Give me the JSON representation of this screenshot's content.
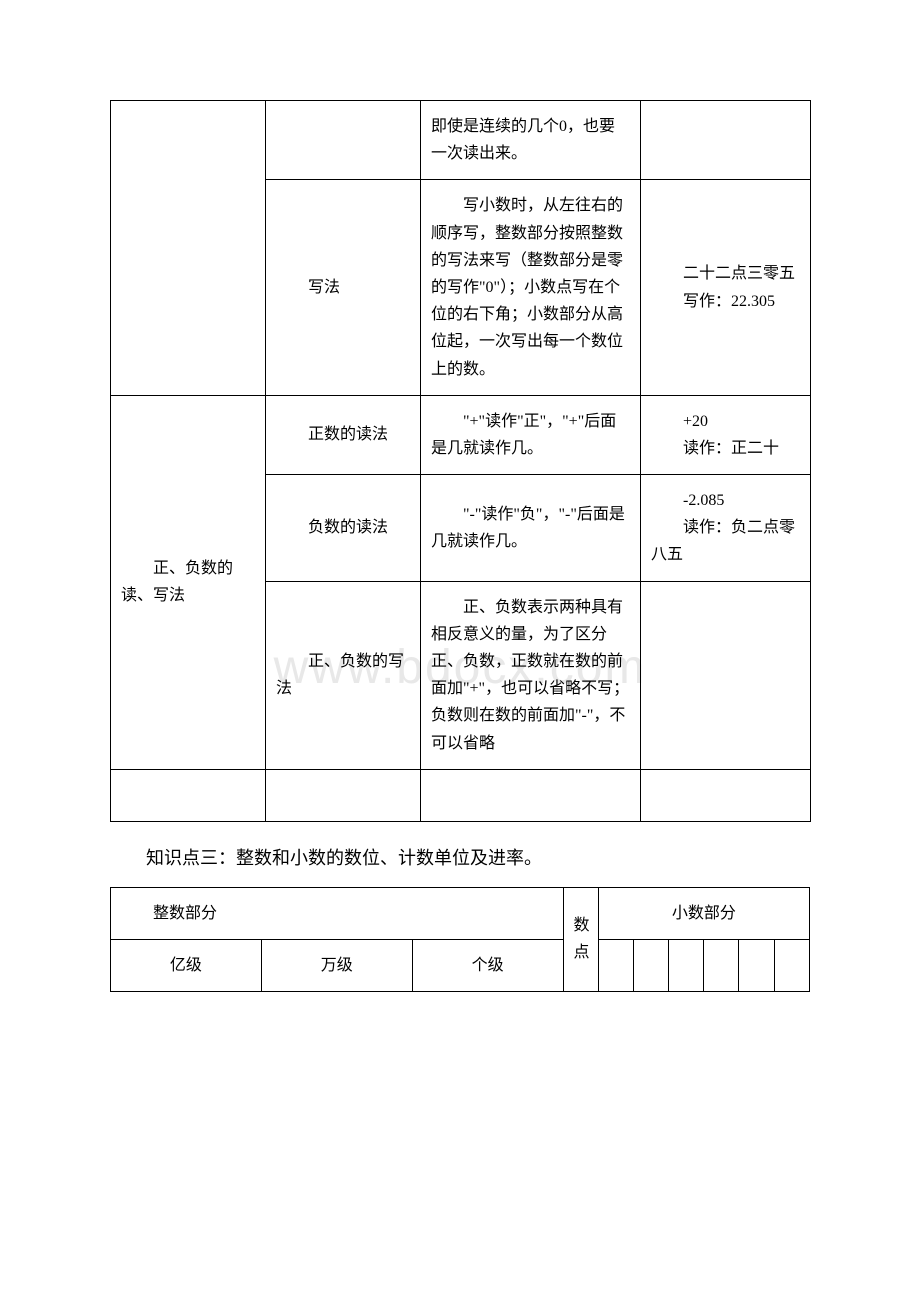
{
  "watermark": "www.bdocx.com",
  "table1": {
    "row1_col3": "即使是连续的几个0，也要一次读出来。",
    "row2_col2": "写法",
    "row2_col3": "写小数时，从左往右的顺序写，整数部分按照整数的写法来写（整数部分是零的写作\"0\"）；小数点写在个位的右下角；小数部分从高位起，一次写出每一个数位上的数。",
    "row2_col4_a": "二十二点三零五",
    "row2_col4_b": "写作：22.305",
    "row3_col1": "正、负数的读、写法",
    "row3a_col2": "正数的读法",
    "row3a_col3": "\"+\"读作\"正\"，\"+\"后面是几就读作几。",
    "row3a_col4_a": "+20",
    "row3a_col4_b": "读作：正二十",
    "row3b_col2": "负数的读法",
    "row3b_col3": "\"-\"读作\"负\"，\"-\"后面是几就读作几。",
    "row3b_col4_a": "-2.085",
    "row3b_col4_b": "读作：负二点零八五",
    "row3c_col2": "正、负数的写法",
    "row3c_col3": "正、负数表示两种具有相反意义的量，为了区分正、负数，正数就在数的前面加\"+\"，也可以省略不写；负数则在数的前面加\"-\"，不可以省略",
    "row4_empty": ""
  },
  "section_title": "知识点三：整数和小数的数位、计数单位及进率。",
  "table2": {
    "h_int": "整数部分",
    "h_point": "数点",
    "h_dec": "小数部分",
    "yi": "亿级",
    "wan": "万级",
    "ge": "个级"
  },
  "colors": {
    "text": "#000000",
    "border": "#000000",
    "background": "#ffffff",
    "watermark": "#e8e8e8"
  }
}
